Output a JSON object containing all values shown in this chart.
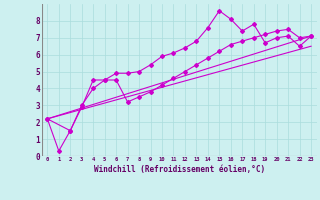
{
  "title": "",
  "xlabel": "Windchill (Refroidissement éolien,°C)",
  "ylabel": "",
  "bg_color": "#cdf0f0",
  "line_color": "#cc00cc",
  "xlim": [
    -0.5,
    23.5
  ],
  "ylim": [
    0,
    9
  ],
  "yticks": [
    0,
    1,
    2,
    3,
    4,
    5,
    6,
    7,
    8
  ],
  "xticks": [
    0,
    1,
    2,
    3,
    4,
    5,
    6,
    7,
    8,
    9,
    10,
    11,
    12,
    13,
    14,
    15,
    16,
    17,
    18,
    19,
    20,
    21,
    22,
    23
  ],
  "line1_x": [
    0,
    1,
    2,
    3,
    4,
    5,
    6,
    7,
    8,
    9,
    10,
    11,
    12,
    13,
    14,
    15,
    16,
    17,
    18,
    19,
    20,
    21,
    22,
    23
  ],
  "line1_y": [
    2.2,
    0.3,
    1.5,
    2.9,
    4.5,
    4.5,
    4.9,
    4.9,
    5.0,
    5.4,
    5.9,
    6.1,
    6.4,
    6.8,
    7.6,
    8.6,
    8.1,
    7.4,
    7.8,
    6.7,
    7.0,
    7.1,
    6.5,
    7.1
  ],
  "line2_x": [
    0,
    2,
    3,
    4,
    5,
    6,
    7,
    8,
    9,
    10,
    11,
    12,
    13,
    14,
    15,
    16,
    17,
    18,
    19,
    20,
    21,
    22,
    23
  ],
  "line2_y": [
    2.2,
    1.5,
    3.0,
    4.0,
    4.5,
    4.5,
    3.2,
    3.5,
    3.8,
    4.2,
    4.6,
    5.0,
    5.4,
    5.8,
    6.2,
    6.6,
    6.8,
    7.0,
    7.2,
    7.4,
    7.5,
    7.0,
    7.1
  ],
  "line3_x": [
    0,
    23
  ],
  "line3_y": [
    2.2,
    7.1
  ],
  "line4_x": [
    0,
    23
  ],
  "line4_y": [
    2.2,
    6.5
  ],
  "marker": "D",
  "marker_size": 2.0,
  "linewidth": 0.8,
  "grid_color": "#aadddd",
  "tick_color": "#660066",
  "xlabel_color": "#660066"
}
